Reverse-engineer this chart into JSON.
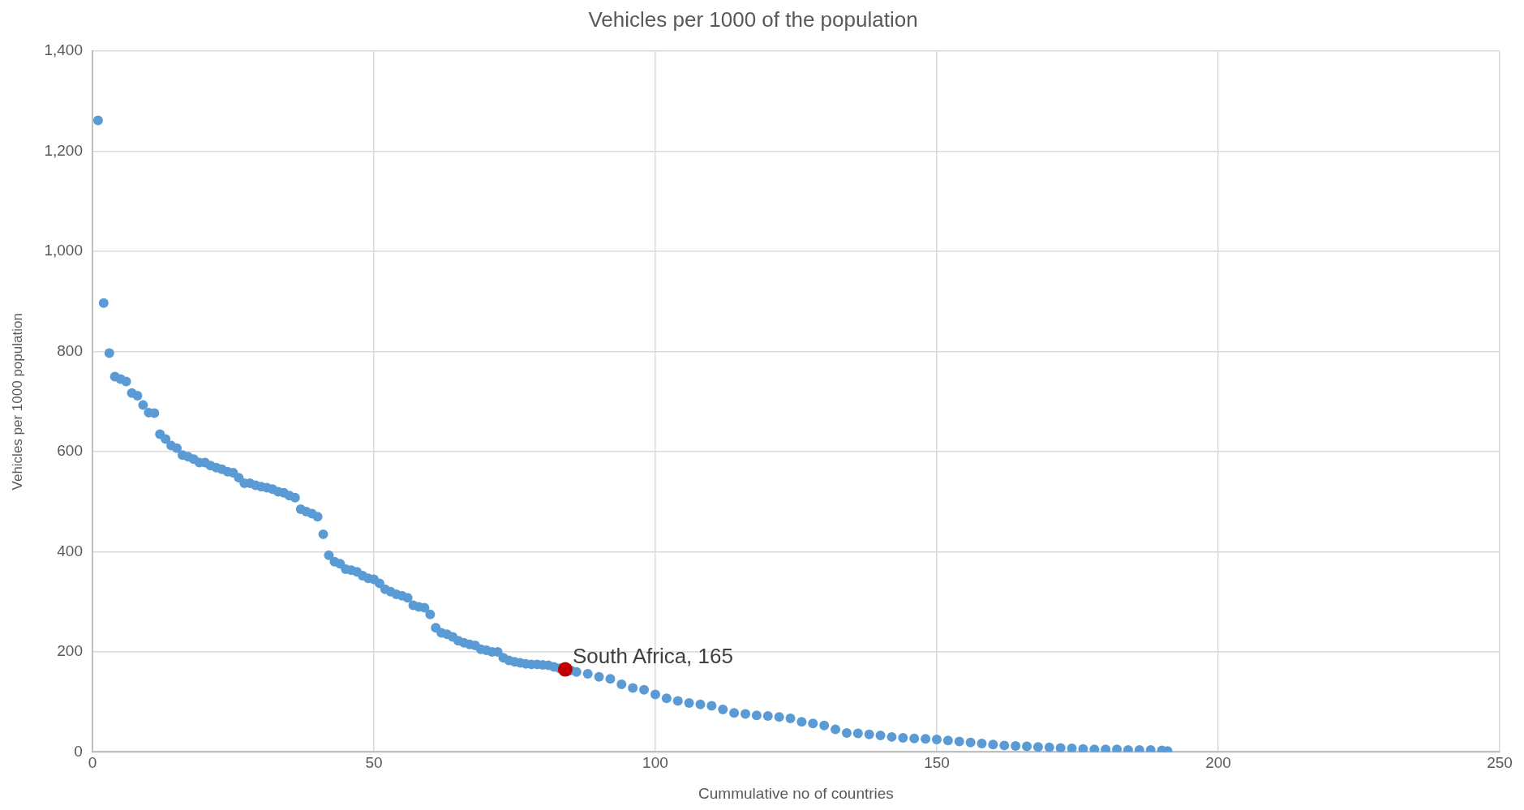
{
  "chart_data": {
    "type": "scatter",
    "title": "Vehicles per 1000 of the population",
    "xlabel": "Cummulative no of countries",
    "ylabel": "Vehicles per 1000 population",
    "xlim": [
      0,
      250
    ],
    "xticks": [
      0,
      50,
      100,
      150,
      200,
      250
    ],
    "ylim": [
      0,
      1400
    ],
    "yticks": [
      0,
      200,
      400,
      600,
      800,
      {
        "value": 1000,
        "label": "1,000"
      },
      {
        "value": 1200,
        "label": "1,200"
      },
      {
        "value": 1400,
        "label": "1,400"
      }
    ],
    "grid": true,
    "legend": false,
    "marker": "circle",
    "series": [
      {
        "color": "#5b9bd5",
        "x": [
          1,
          2,
          3,
          4,
          5,
          6,
          7,
          8,
          9,
          10,
          11,
          12,
          13,
          14,
          15,
          16,
          17,
          18,
          19,
          20,
          21,
          22,
          23,
          24,
          25,
          26,
          27,
          28,
          29,
          30,
          31,
          32,
          33,
          34,
          35,
          36,
          37,
          38,
          39,
          40,
          41,
          42,
          43,
          44,
          45,
          46,
          47,
          48,
          49,
          50,
          51,
          52,
          53,
          54,
          55,
          56,
          57,
          58,
          59,
          60,
          61,
          62,
          63,
          64,
          65,
          66,
          67,
          68,
          69,
          70,
          71,
          72,
          73,
          74,
          75,
          76,
          77,
          78,
          79,
          80,
          81,
          82,
          83,
          85,
          86,
          88,
          90,
          92,
          94,
          96,
          98,
          100,
          102,
          104,
          106,
          108,
          110,
          112,
          114,
          116,
          118,
          120,
          122,
          124,
          126,
          128,
          130,
          132,
          134,
          136,
          138,
          140,
          142,
          144,
          146,
          148,
          150,
          152,
          154,
          156,
          158,
          160,
          162,
          164,
          166,
          168,
          170,
          172,
          174,
          176,
          178,
          180,
          182,
          184,
          186,
          188,
          190,
          191
        ],
        "values": [
          1262,
          897,
          797,
          750,
          745,
          740,
          717,
          712,
          693,
          678,
          677,
          635,
          625,
          612,
          607,
          593,
          590,
          585,
          578,
          578,
          572,
          568,
          565,
          560,
          558,
          548,
          537,
          537,
          533,
          530,
          528,
          525,
          520,
          518,
          512,
          508,
          485,
          480,
          476,
          470,
          435,
          393,
          380,
          376,
          365,
          363,
          360,
          352,
          347,
          345,
          337,
          325,
          320,
          315,
          312,
          308,
          293,
          290,
          288,
          275,
          248,
          238,
          235,
          230,
          222,
          218,
          215,
          213,
          205,
          203,
          200,
          200,
          188,
          183,
          180,
          178,
          176,
          175,
          175,
          174,
          173,
          170,
          167,
          163,
          160,
          156,
          150,
          146,
          135,
          128,
          124,
          115,
          107,
          102,
          98,
          95,
          92,
          85,
          78,
          76,
          73,
          72,
          70,
          67,
          60,
          57,
          53,
          45,
          38,
          37,
          35,
          33,
          30,
          28,
          27,
          26,
          25,
          23,
          21,
          19,
          17,
          15,
          13,
          12,
          11,
          10,
          9,
          8,
          7,
          6,
          5,
          5,
          5,
          4,
          4,
          4,
          3,
          2
        ]
      },
      {
        "color": "#c00000",
        "x": [
          84
        ],
        "values": [
          165
        ]
      }
    ],
    "annotations": [
      {
        "text": "South Africa, 165",
        "x": 84,
        "y": 165
      }
    ]
  }
}
